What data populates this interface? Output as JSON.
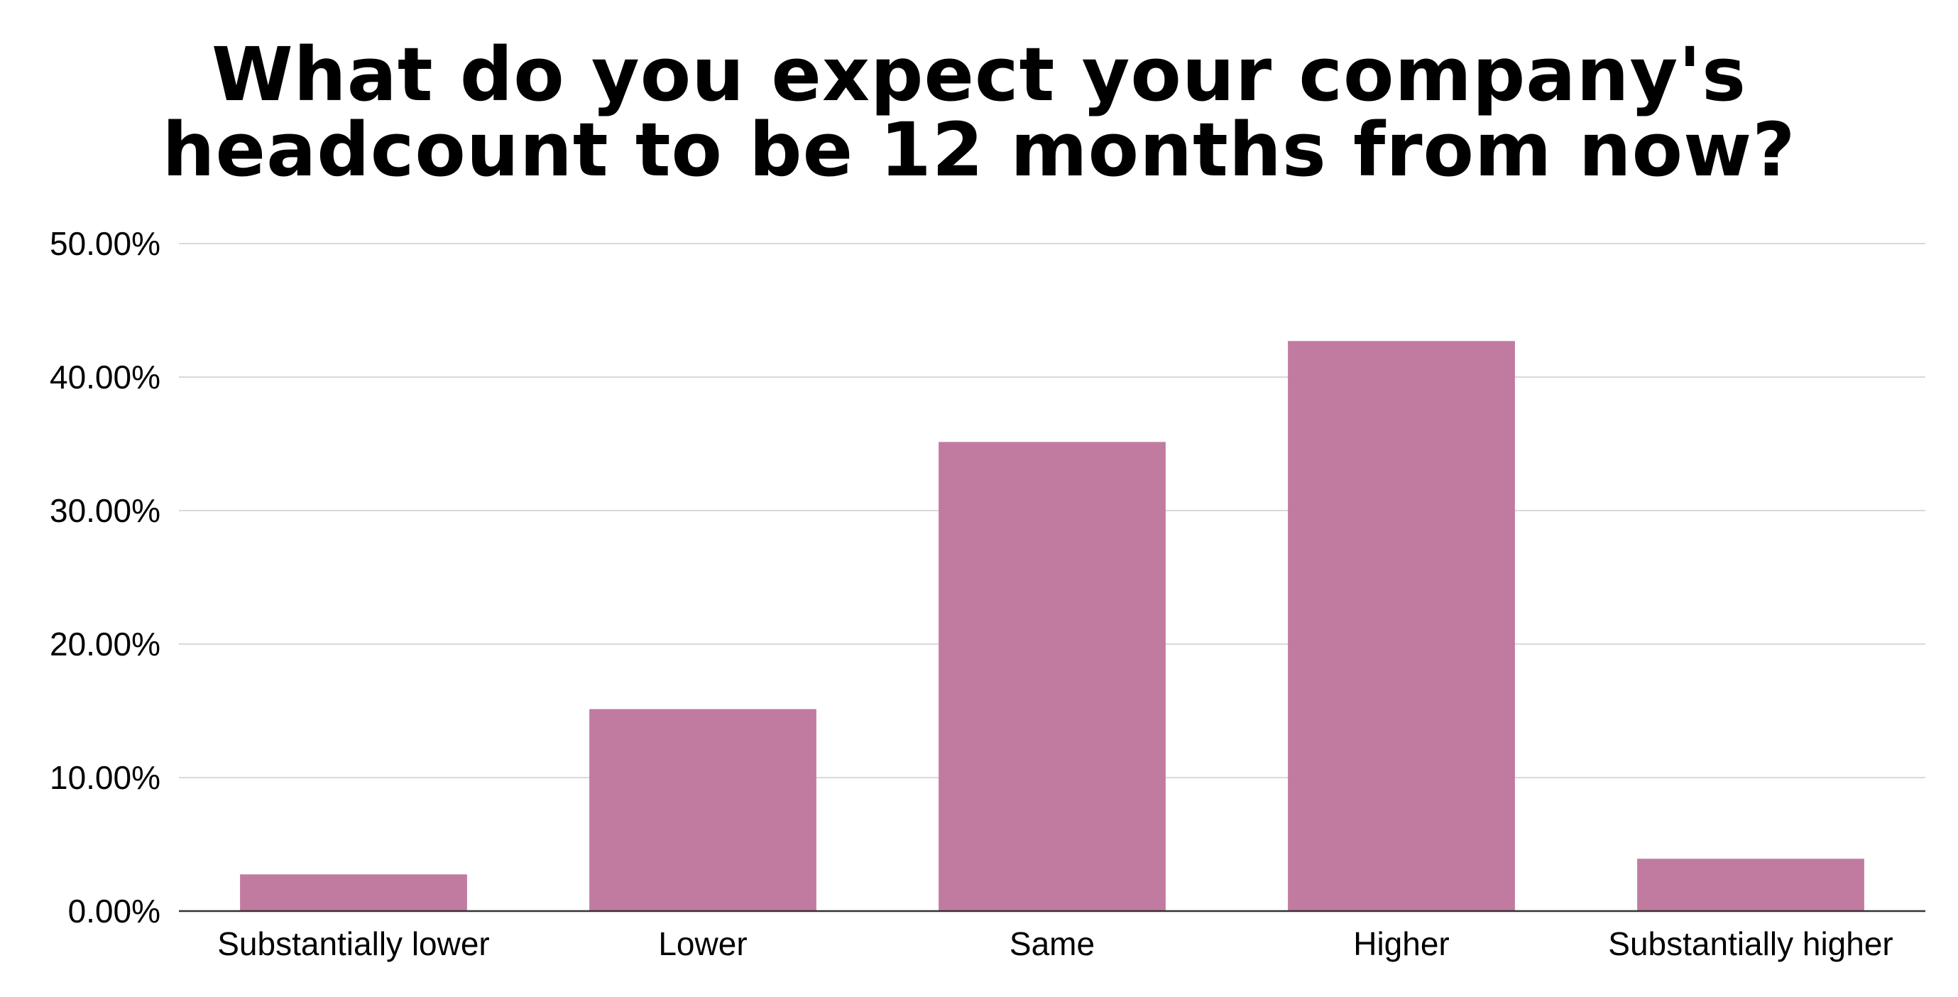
{
  "chart_data": {
    "type": "bar",
    "title_lines": [
      "What do you expect your company's",
      "headcount to be 12 months from now?"
    ],
    "xlabel": "",
    "ylabel": "",
    "categories": [
      "Substantially lower",
      "Lower",
      "Same",
      "Higher",
      "Substantially higher"
    ],
    "values": [
      2.75,
      15.13,
      35.14,
      42.7,
      3.92
    ],
    "ylim": [
      0,
      50
    ],
    "yticks": [
      0,
      10,
      20,
      30,
      40,
      50
    ],
    "ytick_labels": [
      "0.00%",
      "10.00%",
      "20.00%",
      "30.00%",
      "40.00%",
      "50.00%"
    ],
    "grid": true,
    "legend": "none",
    "bar_color": "#c27ba0",
    "grid_color": "#d9d9d9",
    "axis_color": "#333333"
  }
}
